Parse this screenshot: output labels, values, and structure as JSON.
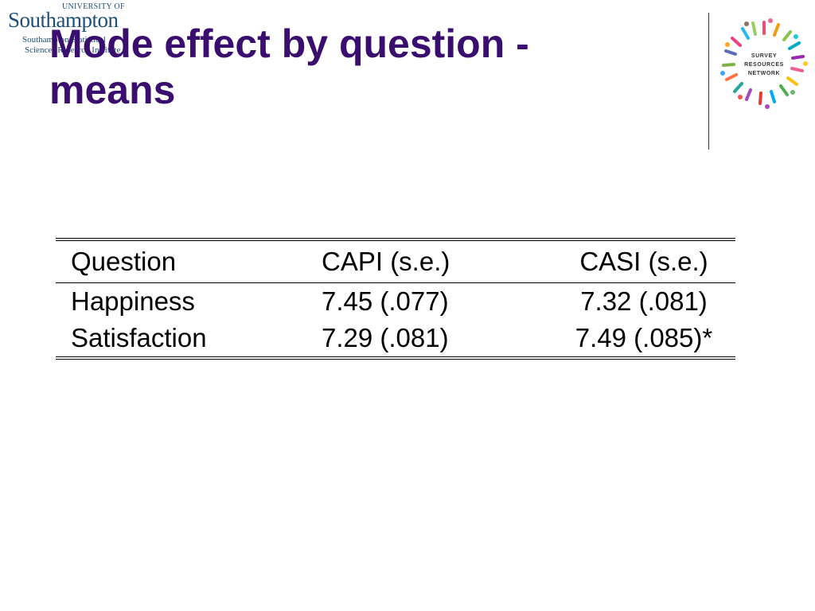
{
  "logo": {
    "university_small": "UNIVERSITY OF",
    "university_name": "Southampton",
    "institute_line1": "Southampton Statistical",
    "institute_line2": "Sciences Research Institute"
  },
  "slide": {
    "title": "Mode effect by question - means"
  },
  "srn_logo": {
    "line1": "SURVEY",
    "line2": "RESOURCES",
    "line3": "NETWORK"
  },
  "table": {
    "headers": [
      "Question",
      "CAPI (s.e.)",
      "CASI (s.e.)"
    ],
    "rows": [
      [
        "Happiness",
        "7.45 (.077)",
        "7.32 (.081)"
      ],
      [
        "Satisfaction",
        "7.29 (.081)",
        "7.49 (.085)*"
      ]
    ]
  },
  "colors": {
    "title": "#3a0e6e",
    "logo_blue": "#1f4e79",
    "text": "#000000"
  }
}
